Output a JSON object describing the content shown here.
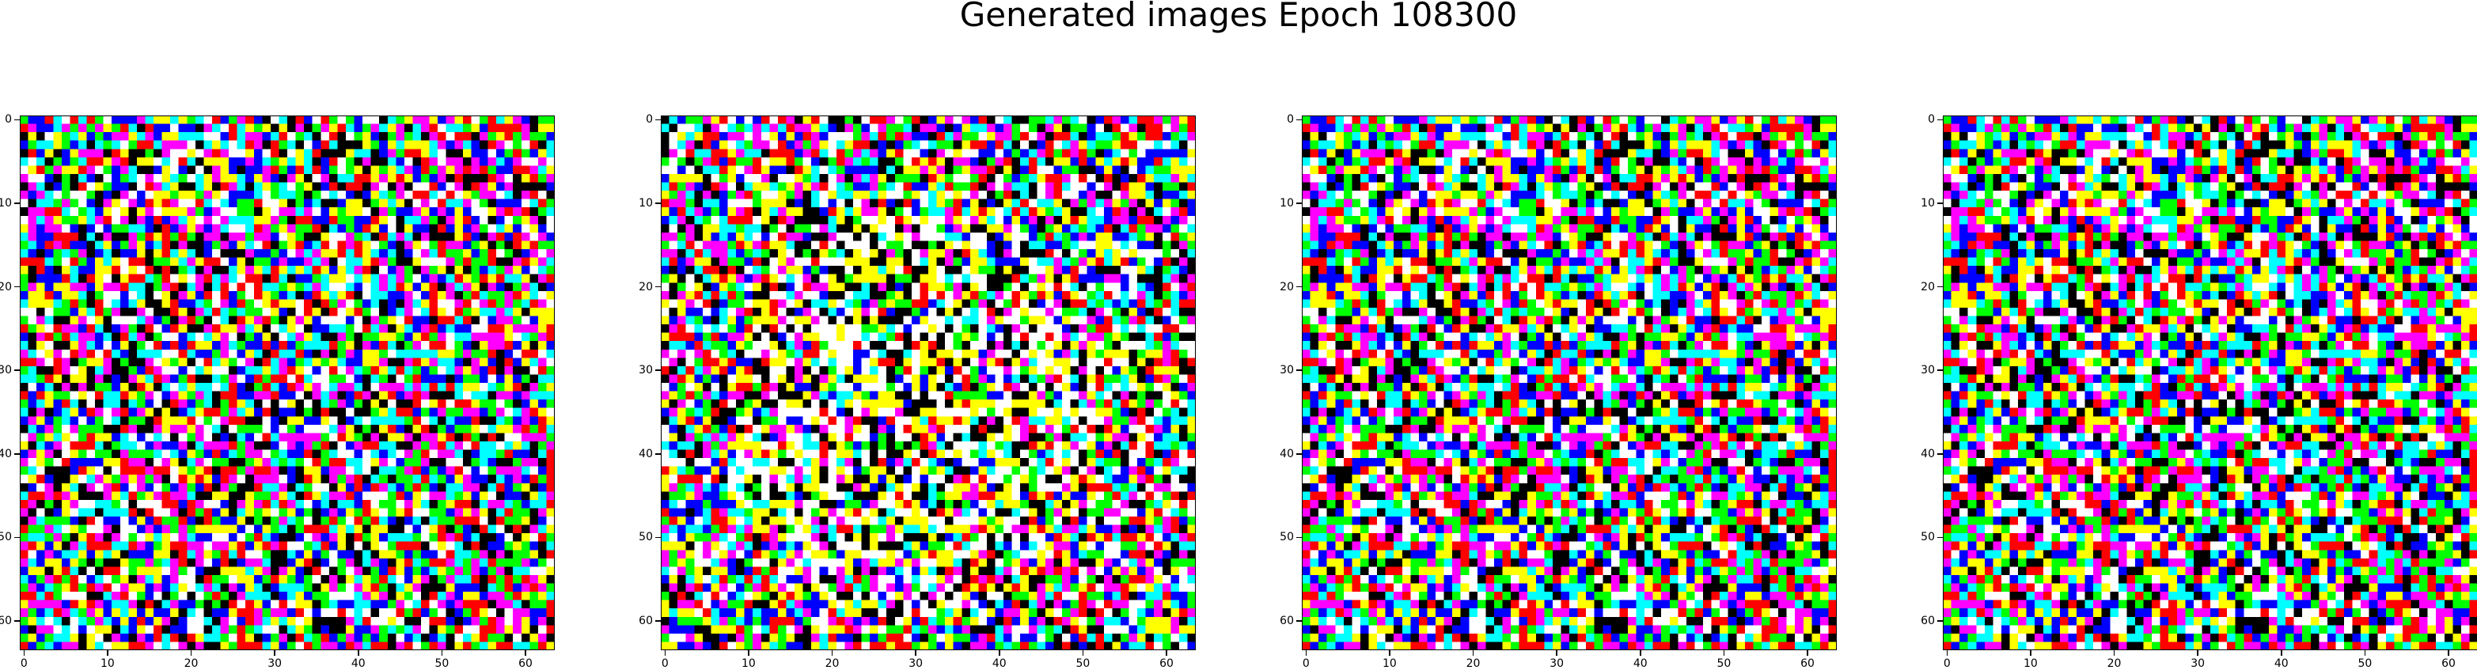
{
  "chart_data": {
    "type": "heatmap",
    "title": "Generated images Epoch 108300",
    "figure_size": [
      3130,
      845
    ],
    "image_resolution": [
      64,
      64
    ],
    "palette": [
      "#ff0000",
      "#00ff00",
      "#0000ff",
      "#ffff00",
      "#ff00ff",
      "#00ffff",
      "#ffffff",
      "#000000"
    ],
    "panels": [
      {
        "name": "generated-image-1",
        "xlim": [
          -0.5,
          63.5
        ],
        "ylim": [
          63.5,
          -0.5
        ],
        "xticks": [
          0,
          10,
          20,
          30,
          40,
          50,
          60
        ],
        "yticks": [
          0,
          10,
          20,
          30,
          40,
          50,
          60
        ],
        "xtick_labels": [
          "0",
          "10",
          "20",
          "30",
          "40",
          "50",
          "60"
        ],
        "ytick_labels": [
          "0",
          "10",
          "20",
          "30",
          "40",
          "50",
          "60"
        ],
        "seed": 11,
        "style": "noise"
      },
      {
        "name": "generated-image-2",
        "xlim": [
          -0.5,
          63.5
        ],
        "ylim": [
          63.5,
          -0.5
        ],
        "xticks": [
          0,
          10,
          20,
          30,
          40,
          50,
          60
        ],
        "yticks": [
          0,
          10,
          20,
          30,
          40,
          50,
          60
        ],
        "xtick_labels": [
          "0",
          "10",
          "20",
          "30",
          "40",
          "50",
          "60"
        ],
        "ytick_labels": [
          "0",
          "10",
          "20",
          "30",
          "40",
          "50",
          "60"
        ],
        "seed": 29,
        "style": "bright-center"
      },
      {
        "name": "generated-image-3",
        "xlim": [
          -0.5,
          63.5
        ],
        "ylim": [
          63.5,
          -0.5
        ],
        "xticks": [
          0,
          10,
          20,
          30,
          40,
          50,
          60
        ],
        "yticks": [
          0,
          10,
          20,
          30,
          40,
          50,
          60
        ],
        "xtick_labels": [
          "0",
          "10",
          "20",
          "30",
          "40",
          "50",
          "60"
        ],
        "ytick_labels": [
          "0",
          "10",
          "20",
          "30",
          "40",
          "50",
          "60"
        ],
        "seed": 11,
        "style": "noise"
      },
      {
        "name": "generated-image-4",
        "xlim": [
          -0.5,
          63.5
        ],
        "ylim": [
          63.5,
          -0.5
        ],
        "xticks": [
          0,
          10,
          20,
          30,
          40,
          50,
          60
        ],
        "yticks": [
          0,
          10,
          20,
          30,
          40,
          50,
          60
        ],
        "xtick_labels": [
          "0",
          "10",
          "20",
          "30",
          "40",
          "50",
          "60"
        ],
        "ytick_labels": [
          "0",
          "10",
          "20",
          "30",
          "40",
          "50",
          "60"
        ],
        "seed": 11,
        "style": "noise"
      }
    ]
  }
}
